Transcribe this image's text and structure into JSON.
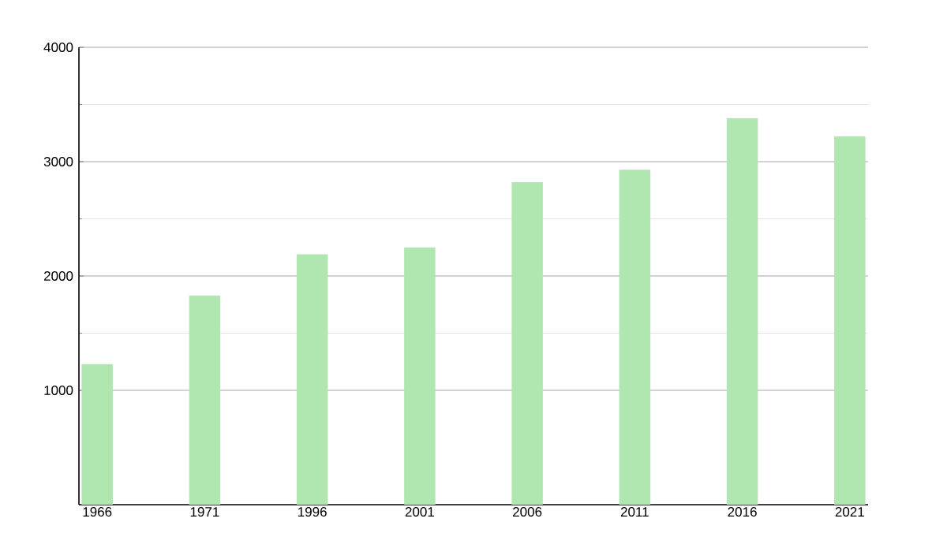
{
  "chart_data": {
    "type": "bar",
    "categories": [
      "1966",
      "1971",
      "1996",
      "2001",
      "2006",
      "2011",
      "2016",
      "2021"
    ],
    "values": [
      1230,
      1830,
      2190,
      2250,
      2820,
      2930,
      3380,
      3220
    ],
    "color": "#b0e6b0",
    "ylim": [
      0,
      4000
    ],
    "yticks": [
      1000,
      2000,
      3000,
      4000
    ],
    "grid": "y"
  }
}
